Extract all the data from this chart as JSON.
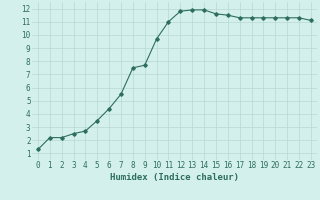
{
  "x": [
    0,
    1,
    2,
    3,
    4,
    5,
    6,
    7,
    8,
    9,
    10,
    11,
    12,
    13,
    14,
    15,
    16,
    17,
    18,
    19,
    20,
    21,
    22,
    23
  ],
  "y": [
    1.3,
    2.2,
    2.2,
    2.5,
    2.7,
    3.5,
    4.4,
    5.5,
    7.5,
    7.7,
    9.7,
    11.0,
    11.8,
    11.9,
    11.9,
    11.6,
    11.5,
    11.3,
    11.3,
    11.3,
    11.3,
    11.3,
    11.3,
    11.1
  ],
  "line_color": "#2d6e5e",
  "marker": "D",
  "marker_size": 1.8,
  "line_width": 0.8,
  "xlabel": "Humidex (Indice chaleur)",
  "xlabel_fontsize": 6.5,
  "bg_color": "#d4f0ed",
  "grid_color": "#b8d8d4",
  "tick_color": "#2d6e5e",
  "label_color": "#2d6e5e",
  "xlim": [
    -0.5,
    23.5
  ],
  "ylim": [
    0.5,
    12.5
  ],
  "yticks": [
    1,
    2,
    3,
    4,
    5,
    6,
    7,
    8,
    9,
    10,
    11,
    12
  ],
  "xticks": [
    0,
    1,
    2,
    3,
    4,
    5,
    6,
    7,
    8,
    9,
    10,
    11,
    12,
    13,
    14,
    15,
    16,
    17,
    18,
    19,
    20,
    21,
    22,
    23
  ],
  "tick_fontsize": 5.5
}
